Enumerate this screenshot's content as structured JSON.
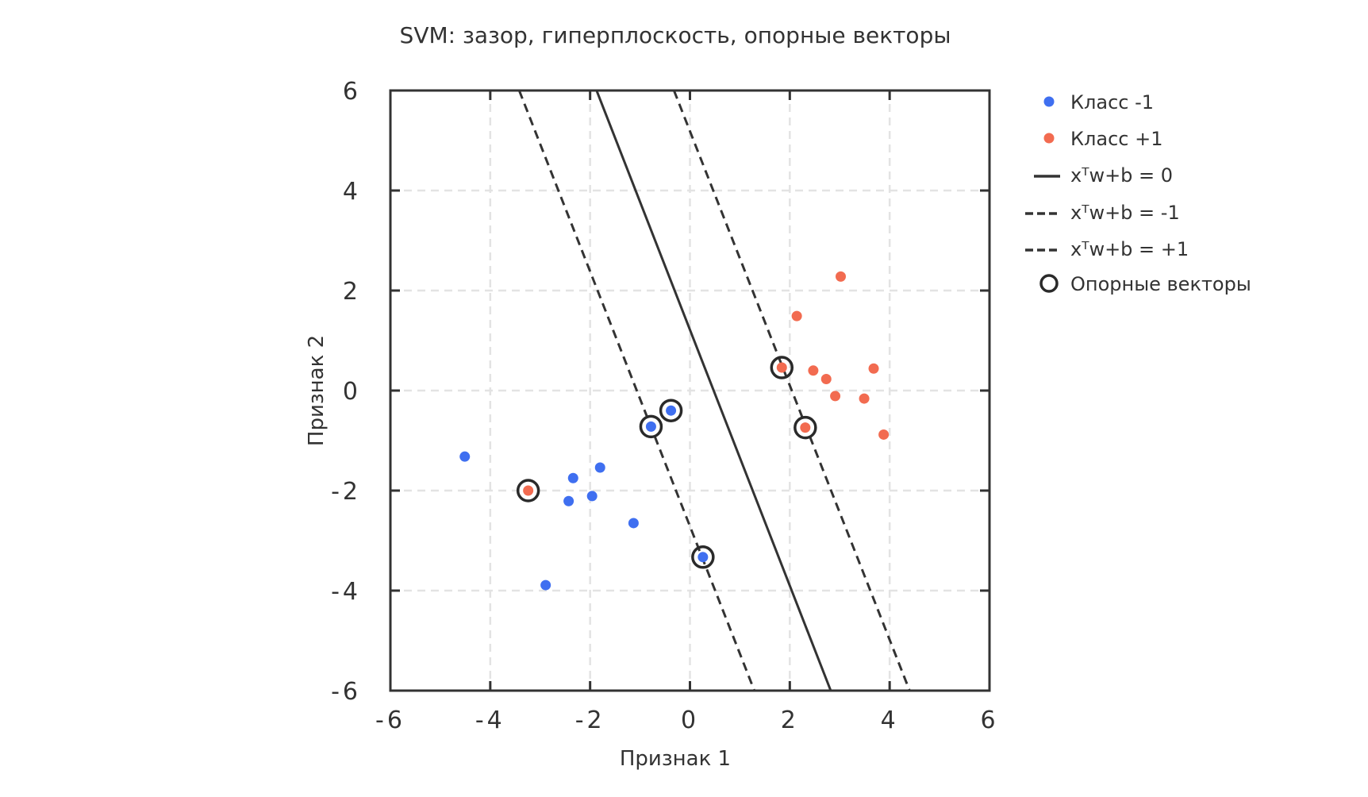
{
  "chart_data": {
    "type": "scatter",
    "title": "SVM:  зазор, гиперплоскость, опорные векторы",
    "xlabel": "Признак 1",
    "ylabel": "Признак 2",
    "xlim": [
      -6,
      6
    ],
    "ylim": [
      -6,
      6
    ],
    "xticks": [
      "-6",
      "-4",
      "-2",
      "0",
      "2",
      "4",
      "6"
    ],
    "yticks": [
      "6",
      "4",
      "2",
      "0",
      "-2",
      "-4",
      "-6"
    ],
    "grid": true,
    "legend_position": "outside-right",
    "colors": {
      "class_neg": "#3f6ff0",
      "class_pos": "#f26b50",
      "line": "#333333",
      "grid": "#e3e3e3"
    },
    "series": [
      {
        "name": "Класс -1",
        "color": "#3f6ff0",
        "points": [
          [
            -4.51,
            -1.32
          ],
          [
            -2.34,
            -1.75
          ],
          [
            -1.8,
            -1.54
          ],
          [
            -2.43,
            -2.21
          ],
          [
            -1.96,
            -2.11
          ],
          [
            -1.13,
            -2.65
          ],
          [
            -2.89,
            -3.89
          ],
          [
            -0.78,
            -0.72
          ],
          [
            -0.38,
            -0.4
          ],
          [
            0.26,
            -3.33
          ]
        ]
      },
      {
        "name": "Класс +1",
        "color": "#f26b50",
        "points": [
          [
            -3.24,
            -2.0
          ],
          [
            3.02,
            2.28
          ],
          [
            2.14,
            1.49
          ],
          [
            1.84,
            0.46
          ],
          [
            2.47,
            0.4
          ],
          [
            2.73,
            0.23
          ],
          [
            2.91,
            -0.11
          ],
          [
            3.49,
            -0.16
          ],
          [
            3.68,
            0.44
          ],
          [
            2.31,
            -0.74
          ],
          [
            3.88,
            -0.88
          ]
        ]
      }
    ],
    "lines": [
      {
        "name": "xᵀw+b = 0",
        "style": "solid",
        "points": [
          [
            -1.87,
            6
          ],
          [
            2.82,
            -6
          ]
        ]
      },
      {
        "name": "xᵀw+b = -1",
        "style": "dashed",
        "points": [
          [
            -3.42,
            6
          ],
          [
            1.29,
            -6
          ]
        ]
      },
      {
        "name": "xᵀw+b = +1",
        "style": "dashed",
        "points": [
          [
            -0.32,
            6
          ],
          [
            4.4,
            -6
          ]
        ]
      }
    ],
    "support_vectors": {
      "name": "Опорные векторы",
      "points": [
        [
          -0.78,
          -0.72
        ],
        [
          -0.38,
          -0.4
        ],
        [
          0.26,
          -3.33
        ],
        [
          -3.24,
          -2.0
        ],
        [
          1.84,
          0.46
        ],
        [
          2.31,
          -0.74
        ]
      ]
    },
    "legend": [
      {
        "label": "Класс -1",
        "marker": "dot-blue"
      },
      {
        "label": "Класс +1",
        "marker": "dot-red"
      },
      {
        "label": "xᵀw+b = 0",
        "marker": "solid-line"
      },
      {
        "label": "xᵀw+b = -1",
        "marker": "dashed-line"
      },
      {
        "label": "xᵀw+b = +1",
        "marker": "dashed-line"
      },
      {
        "label": "Опорные векторы",
        "marker": "ring"
      }
    ]
  }
}
